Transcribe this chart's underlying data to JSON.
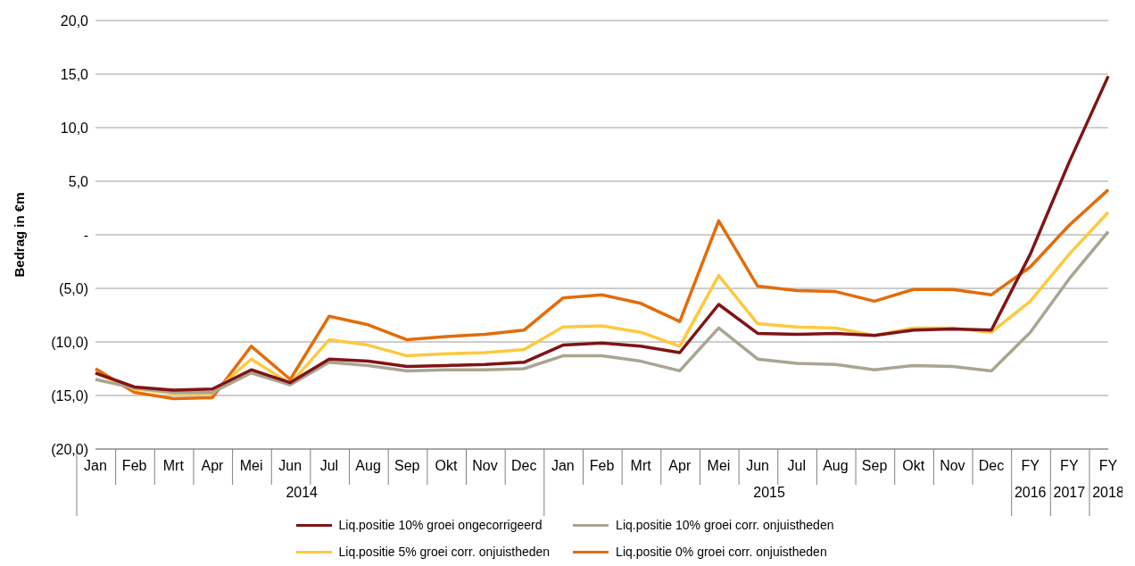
{
  "chart_data": {
    "type": "line",
    "ylabel": "Bedrag in €m",
    "categories": [
      "Jan",
      "Feb",
      "Mrt",
      "Apr",
      "Mei",
      "Jun",
      "Jul",
      "Aug",
      "Sep",
      "Okt",
      "Nov",
      "Dec",
      "Jan",
      "Feb",
      "Mrt",
      "Apr",
      "Mei",
      "Jun",
      "Jul",
      "Aug",
      "Sep",
      "Okt",
      "Nov",
      "Dec",
      "FY 2016",
      "FY 2017",
      "FY 2018"
    ],
    "annotations": [
      "2014",
      "2015"
    ],
    "series": [
      {
        "name": "Liq.positie 10% groei ongecorrigeerd",
        "color": "#7f1416",
        "values": [
          -12.9,
          -14.2,
          -14.5,
          -14.4,
          -12.6,
          -13.8,
          -11.6,
          -11.8,
          -12.3,
          -12.2,
          -12.1,
          -11.9,
          -10.3,
          -10.1,
          -10.4,
          -11.0,
          -6.5,
          -9.2,
          -9.3,
          -9.2,
          -9.4,
          -8.9,
          -8.8,
          -8.9,
          -1.8,
          6.8,
          14.8
        ]
      },
      {
        "name": "Liq.positie 10% groei corr. onjuistheden",
        "color": "#aaa591",
        "values": [
          -13.5,
          -14.3,
          -14.7,
          -14.7,
          -12.9,
          -14.0,
          -11.9,
          -12.2,
          -12.7,
          -12.6,
          -12.6,
          -12.5,
          -11.3,
          -11.3,
          -11.8,
          -12.7,
          -8.7,
          -11.6,
          -12.0,
          -12.1,
          -12.6,
          -12.2,
          -12.3,
          -12.7,
          -9.1,
          -4.1,
          0.3
        ]
      },
      {
        "name": "Liq.positie 5% groei corr. onjuistheden",
        "color": "#fdc93f",
        "values": [
          -12.9,
          -14.4,
          -14.8,
          -14.8,
          -11.6,
          -13.9,
          -9.8,
          -10.3,
          -11.3,
          -11.1,
          -11.0,
          -10.7,
          -8.6,
          -8.5,
          -9.1,
          -10.4,
          -3.8,
          -8.3,
          -8.6,
          -8.7,
          -9.4,
          -8.7,
          -8.7,
          -9.1,
          -6.2,
          -1.8,
          2.1
        ]
      },
      {
        "name": "Liq.positie 0% groei corr. onjuistheden",
        "color": "#e36c0a",
        "values": [
          -12.5,
          -14.7,
          -15.3,
          -15.2,
          -10.4,
          -13.5,
          -7.6,
          -8.4,
          -9.8,
          -9.5,
          -9.3,
          -8.9,
          -5.9,
          -5.6,
          -6.4,
          -8.1,
          1.3,
          -4.8,
          -5.2,
          -5.3,
          -6.2,
          -5.1,
          -5.1,
          -5.6,
          -3.0,
          0.9,
          4.2
        ]
      }
    ],
    "ylim": [
      -20,
      20
    ],
    "yticks": [
      {
        "value": -20,
        "label": "(20,0)"
      },
      {
        "value": -15,
        "label": "(15,0)"
      },
      {
        "value": -10,
        "label": "(10,0)"
      },
      {
        "value": -5,
        "label": "(5,0)"
      },
      {
        "value": 0,
        "label": "-"
      },
      {
        "value": 5,
        "label": "5,0"
      },
      {
        "value": 10,
        "label": "10,0"
      },
      {
        "value": 15,
        "label": "15,0"
      },
      {
        "value": 20,
        "label": "20,0"
      }
    ],
    "grid": "y",
    "legend": "bottom",
    "marker": "none",
    "line_style": "solid"
  }
}
